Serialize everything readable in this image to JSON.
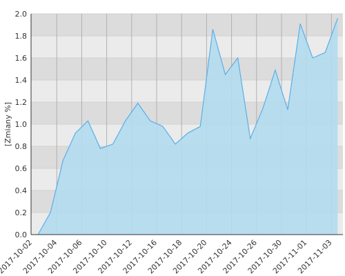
{
  "chart_data": {
    "type": "area",
    "y_label": "[Zmiany %]",
    "categories": [
      "2017-10-02",
      null,
      "2017-10-04",
      null,
      "2017-10-06",
      null,
      "2017-10-10",
      null,
      "2017-10-12",
      null,
      "2017-10-16",
      null,
      "2017-10-18",
      null,
      "2017-10-20",
      null,
      "2017-10-24",
      null,
      "2017-10-26",
      null,
      "2017-10-30",
      null,
      "2017-11-01",
      null,
      "2017-11-03"
    ],
    "values": [
      0,
      0.2,
      0.67,
      0.92,
      1.03,
      0.78,
      0.82,
      1.03,
      1.19,
      1.03,
      0.98,
      0.82,
      0.92,
      0.98,
      1.86,
      1.45,
      1.6,
      0.87,
      1.14,
      1.49,
      1.13,
      1.91,
      1.6,
      1.65,
      1.96
    ],
    "color": "#5aaee8",
    "fill_color": "#b3dcee",
    "ylim": [
      0,
      2.0
    ],
    "yticks": [
      {
        "value": 0,
        "label": "0.0"
      },
      0.2,
      0.4,
      0.6,
      0.8,
      {
        "value": 1,
        "label": "1.0"
      },
      1.2,
      1.4,
      1.6,
      1.8,
      {
        "value": 2,
        "label": "2.0"
      }
    ],
    "grid": true
  }
}
